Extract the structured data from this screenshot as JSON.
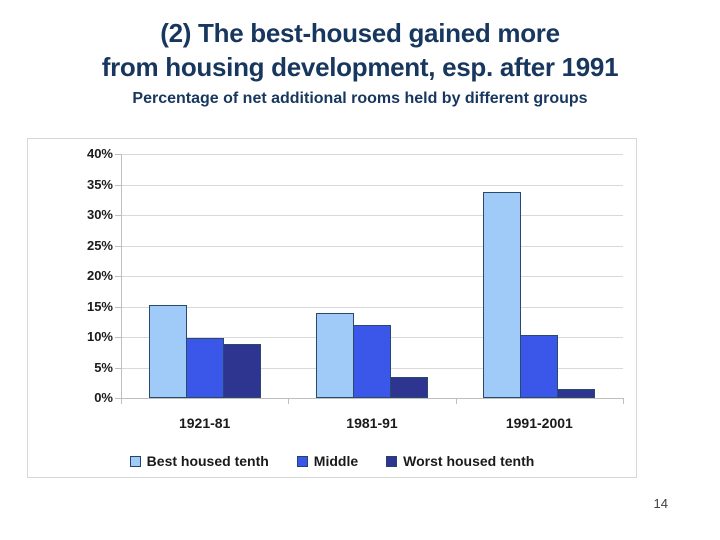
{
  "slide": {
    "title_line1": "(2) The best-housed gained more",
    "title_line2": "from housing development, esp. after 1991",
    "page_number": "14",
    "title_color": "#17375E",
    "background_color": "#FFFFFF"
  },
  "chart_data": {
    "type": "bar",
    "title": "Percentage of net additional rooms held by different groups",
    "xlabel": "",
    "ylabel": "",
    "categories": [
      "1921-81",
      "1981-91",
      "1991-2001"
    ],
    "series": [
      {
        "name": "Best housed tenth",
        "color": "#A0CBF8",
        "values": [
          15.3,
          14.0,
          33.8
        ]
      },
      {
        "name": "Middle",
        "color": "#3B57EA",
        "values": [
          9.8,
          11.9,
          10.3
        ]
      },
      {
        "name": "Worst housed tenth",
        "color": "#2E3591",
        "values": [
          8.8,
          3.4,
          1.5
        ]
      }
    ],
    "ylim": [
      0,
      40
    ],
    "ytick_step": 5,
    "ytick_suffix": "%",
    "grid": true,
    "legend_position": "bottom",
    "styles": {
      "bar_border": "#2A4A6B",
      "gridline": "#D9D9D9",
      "axis": "#BFBFBF",
      "label_text": "#1A1A1A",
      "chart_border": "#D7D7D7"
    }
  }
}
